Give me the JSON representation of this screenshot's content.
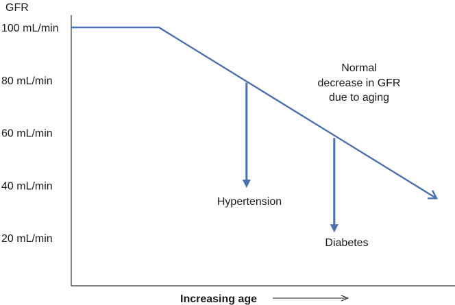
{
  "chart_data": {
    "type": "line",
    "ylabel": "GFR",
    "xlabel": "Increasing age",
    "yticks": [
      {
        "value": 100,
        "label": "100 mL/min"
      },
      {
        "value": 80,
        "label": "80 mL/min"
      },
      {
        "value": 60,
        "label": "60 mL/min"
      },
      {
        "value": 40,
        "label": "40 mL/min"
      },
      {
        "value": 20,
        "label": "20 mL/min"
      }
    ],
    "ylim": [
      0,
      105
    ],
    "series": [
      {
        "points": [
          {
            "x": 0,
            "y": 100
          },
          {
            "x": 0.24,
            "y": 100
          },
          {
            "x": 1.0,
            "y": 35
          }
        ]
      }
    ],
    "annotations": [
      {
        "text": [
          "Normal",
          "decrease in GFR",
          "due to aging"
        ]
      },
      {
        "text": "Hypertension",
        "x": 0.48,
        "y_from": 79,
        "y_to": 39
      },
      {
        "text": "Diabetes",
        "x": 0.72,
        "y_from": 58,
        "y_to": 22
      }
    ],
    "grid": false,
    "colors": {
      "line": "#4a6fb3",
      "axis": "#333333"
    }
  }
}
